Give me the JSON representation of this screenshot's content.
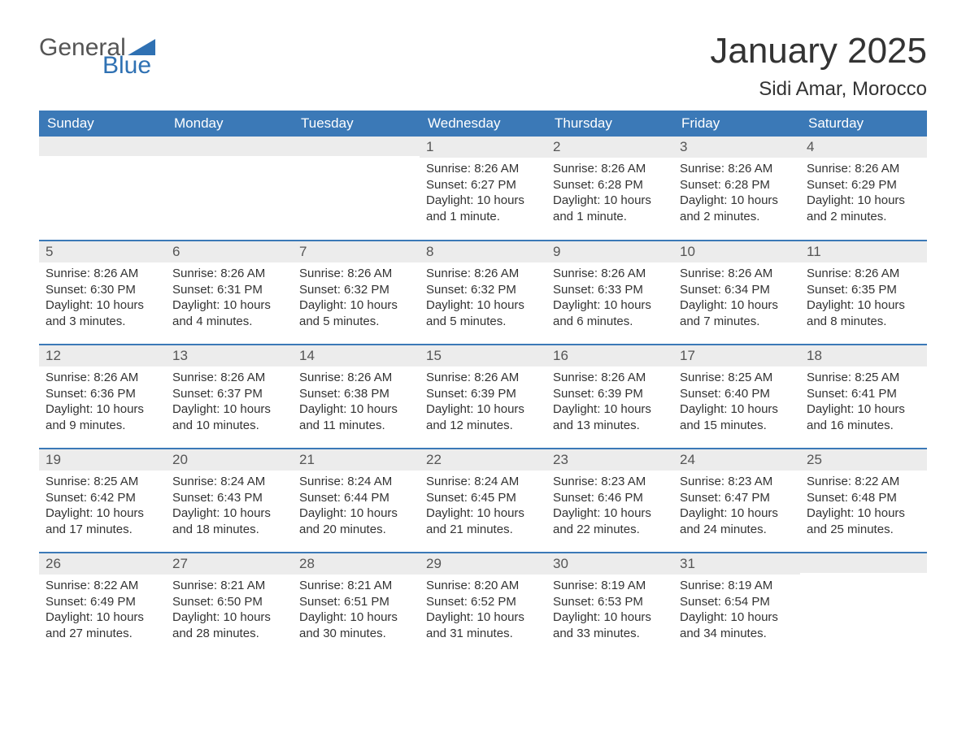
{
  "logo": {
    "word1": "General",
    "word2": "Blue",
    "word1_color": "#555555",
    "word2_color": "#2f71b3",
    "triangle_color": "#2f71b3"
  },
  "title": {
    "month": "January 2025",
    "location": "Sidi Amar, Morocco",
    "month_fontsize": 44,
    "location_fontsize": 24,
    "text_color": "#333333"
  },
  "calendar": {
    "type": "table",
    "header_bg": "#3b79b7",
    "header_text_color": "#ffffff",
    "daynum_bg": "#ececec",
    "daynum_text_color": "#555555",
    "body_text_color": "#333333",
    "row_divider_color": "#3b79b7",
    "day_headers": [
      "Sunday",
      "Monday",
      "Tuesday",
      "Wednesday",
      "Thursday",
      "Friday",
      "Saturday"
    ],
    "weeks": [
      [
        null,
        null,
        null,
        {
          "n": "1",
          "sunrise": "8:26 AM",
          "sunset": "6:27 PM",
          "daylight": "10 hours and 1 minute."
        },
        {
          "n": "2",
          "sunrise": "8:26 AM",
          "sunset": "6:28 PM",
          "daylight": "10 hours and 1 minute."
        },
        {
          "n": "3",
          "sunrise": "8:26 AM",
          "sunset": "6:28 PM",
          "daylight": "10 hours and 2 minutes."
        },
        {
          "n": "4",
          "sunrise": "8:26 AM",
          "sunset": "6:29 PM",
          "daylight": "10 hours and 2 minutes."
        }
      ],
      [
        {
          "n": "5",
          "sunrise": "8:26 AM",
          "sunset": "6:30 PM",
          "daylight": "10 hours and 3 minutes."
        },
        {
          "n": "6",
          "sunrise": "8:26 AM",
          "sunset": "6:31 PM",
          "daylight": "10 hours and 4 minutes."
        },
        {
          "n": "7",
          "sunrise": "8:26 AM",
          "sunset": "6:32 PM",
          "daylight": "10 hours and 5 minutes."
        },
        {
          "n": "8",
          "sunrise": "8:26 AM",
          "sunset": "6:32 PM",
          "daylight": "10 hours and 5 minutes."
        },
        {
          "n": "9",
          "sunrise": "8:26 AM",
          "sunset": "6:33 PM",
          "daylight": "10 hours and 6 minutes."
        },
        {
          "n": "10",
          "sunrise": "8:26 AM",
          "sunset": "6:34 PM",
          "daylight": "10 hours and 7 minutes."
        },
        {
          "n": "11",
          "sunrise": "8:26 AM",
          "sunset": "6:35 PM",
          "daylight": "10 hours and 8 minutes."
        }
      ],
      [
        {
          "n": "12",
          "sunrise": "8:26 AM",
          "sunset": "6:36 PM",
          "daylight": "10 hours and 9 minutes."
        },
        {
          "n": "13",
          "sunrise": "8:26 AM",
          "sunset": "6:37 PM",
          "daylight": "10 hours and 10 minutes."
        },
        {
          "n": "14",
          "sunrise": "8:26 AM",
          "sunset": "6:38 PM",
          "daylight": "10 hours and 11 minutes."
        },
        {
          "n": "15",
          "sunrise": "8:26 AM",
          "sunset": "6:39 PM",
          "daylight": "10 hours and 12 minutes."
        },
        {
          "n": "16",
          "sunrise": "8:26 AM",
          "sunset": "6:39 PM",
          "daylight": "10 hours and 13 minutes."
        },
        {
          "n": "17",
          "sunrise": "8:25 AM",
          "sunset": "6:40 PM",
          "daylight": "10 hours and 15 minutes."
        },
        {
          "n": "18",
          "sunrise": "8:25 AM",
          "sunset": "6:41 PM",
          "daylight": "10 hours and 16 minutes."
        }
      ],
      [
        {
          "n": "19",
          "sunrise": "8:25 AM",
          "sunset": "6:42 PM",
          "daylight": "10 hours and 17 minutes."
        },
        {
          "n": "20",
          "sunrise": "8:24 AM",
          "sunset": "6:43 PM",
          "daylight": "10 hours and 18 minutes."
        },
        {
          "n": "21",
          "sunrise": "8:24 AM",
          "sunset": "6:44 PM",
          "daylight": "10 hours and 20 minutes."
        },
        {
          "n": "22",
          "sunrise": "8:24 AM",
          "sunset": "6:45 PM",
          "daylight": "10 hours and 21 minutes."
        },
        {
          "n": "23",
          "sunrise": "8:23 AM",
          "sunset": "6:46 PM",
          "daylight": "10 hours and 22 minutes."
        },
        {
          "n": "24",
          "sunrise": "8:23 AM",
          "sunset": "6:47 PM",
          "daylight": "10 hours and 24 minutes."
        },
        {
          "n": "25",
          "sunrise": "8:22 AM",
          "sunset": "6:48 PM",
          "daylight": "10 hours and 25 minutes."
        }
      ],
      [
        {
          "n": "26",
          "sunrise": "8:22 AM",
          "sunset": "6:49 PM",
          "daylight": "10 hours and 27 minutes."
        },
        {
          "n": "27",
          "sunrise": "8:21 AM",
          "sunset": "6:50 PM",
          "daylight": "10 hours and 28 minutes."
        },
        {
          "n": "28",
          "sunrise": "8:21 AM",
          "sunset": "6:51 PM",
          "daylight": "10 hours and 30 minutes."
        },
        {
          "n": "29",
          "sunrise": "8:20 AM",
          "sunset": "6:52 PM",
          "daylight": "10 hours and 31 minutes."
        },
        {
          "n": "30",
          "sunrise": "8:19 AM",
          "sunset": "6:53 PM",
          "daylight": "10 hours and 33 minutes."
        },
        {
          "n": "31",
          "sunrise": "8:19 AM",
          "sunset": "6:54 PM",
          "daylight": "10 hours and 34 minutes."
        },
        null
      ]
    ],
    "labels": {
      "sunrise": "Sunrise:",
      "sunset": "Sunset:",
      "daylight": "Daylight:"
    }
  }
}
